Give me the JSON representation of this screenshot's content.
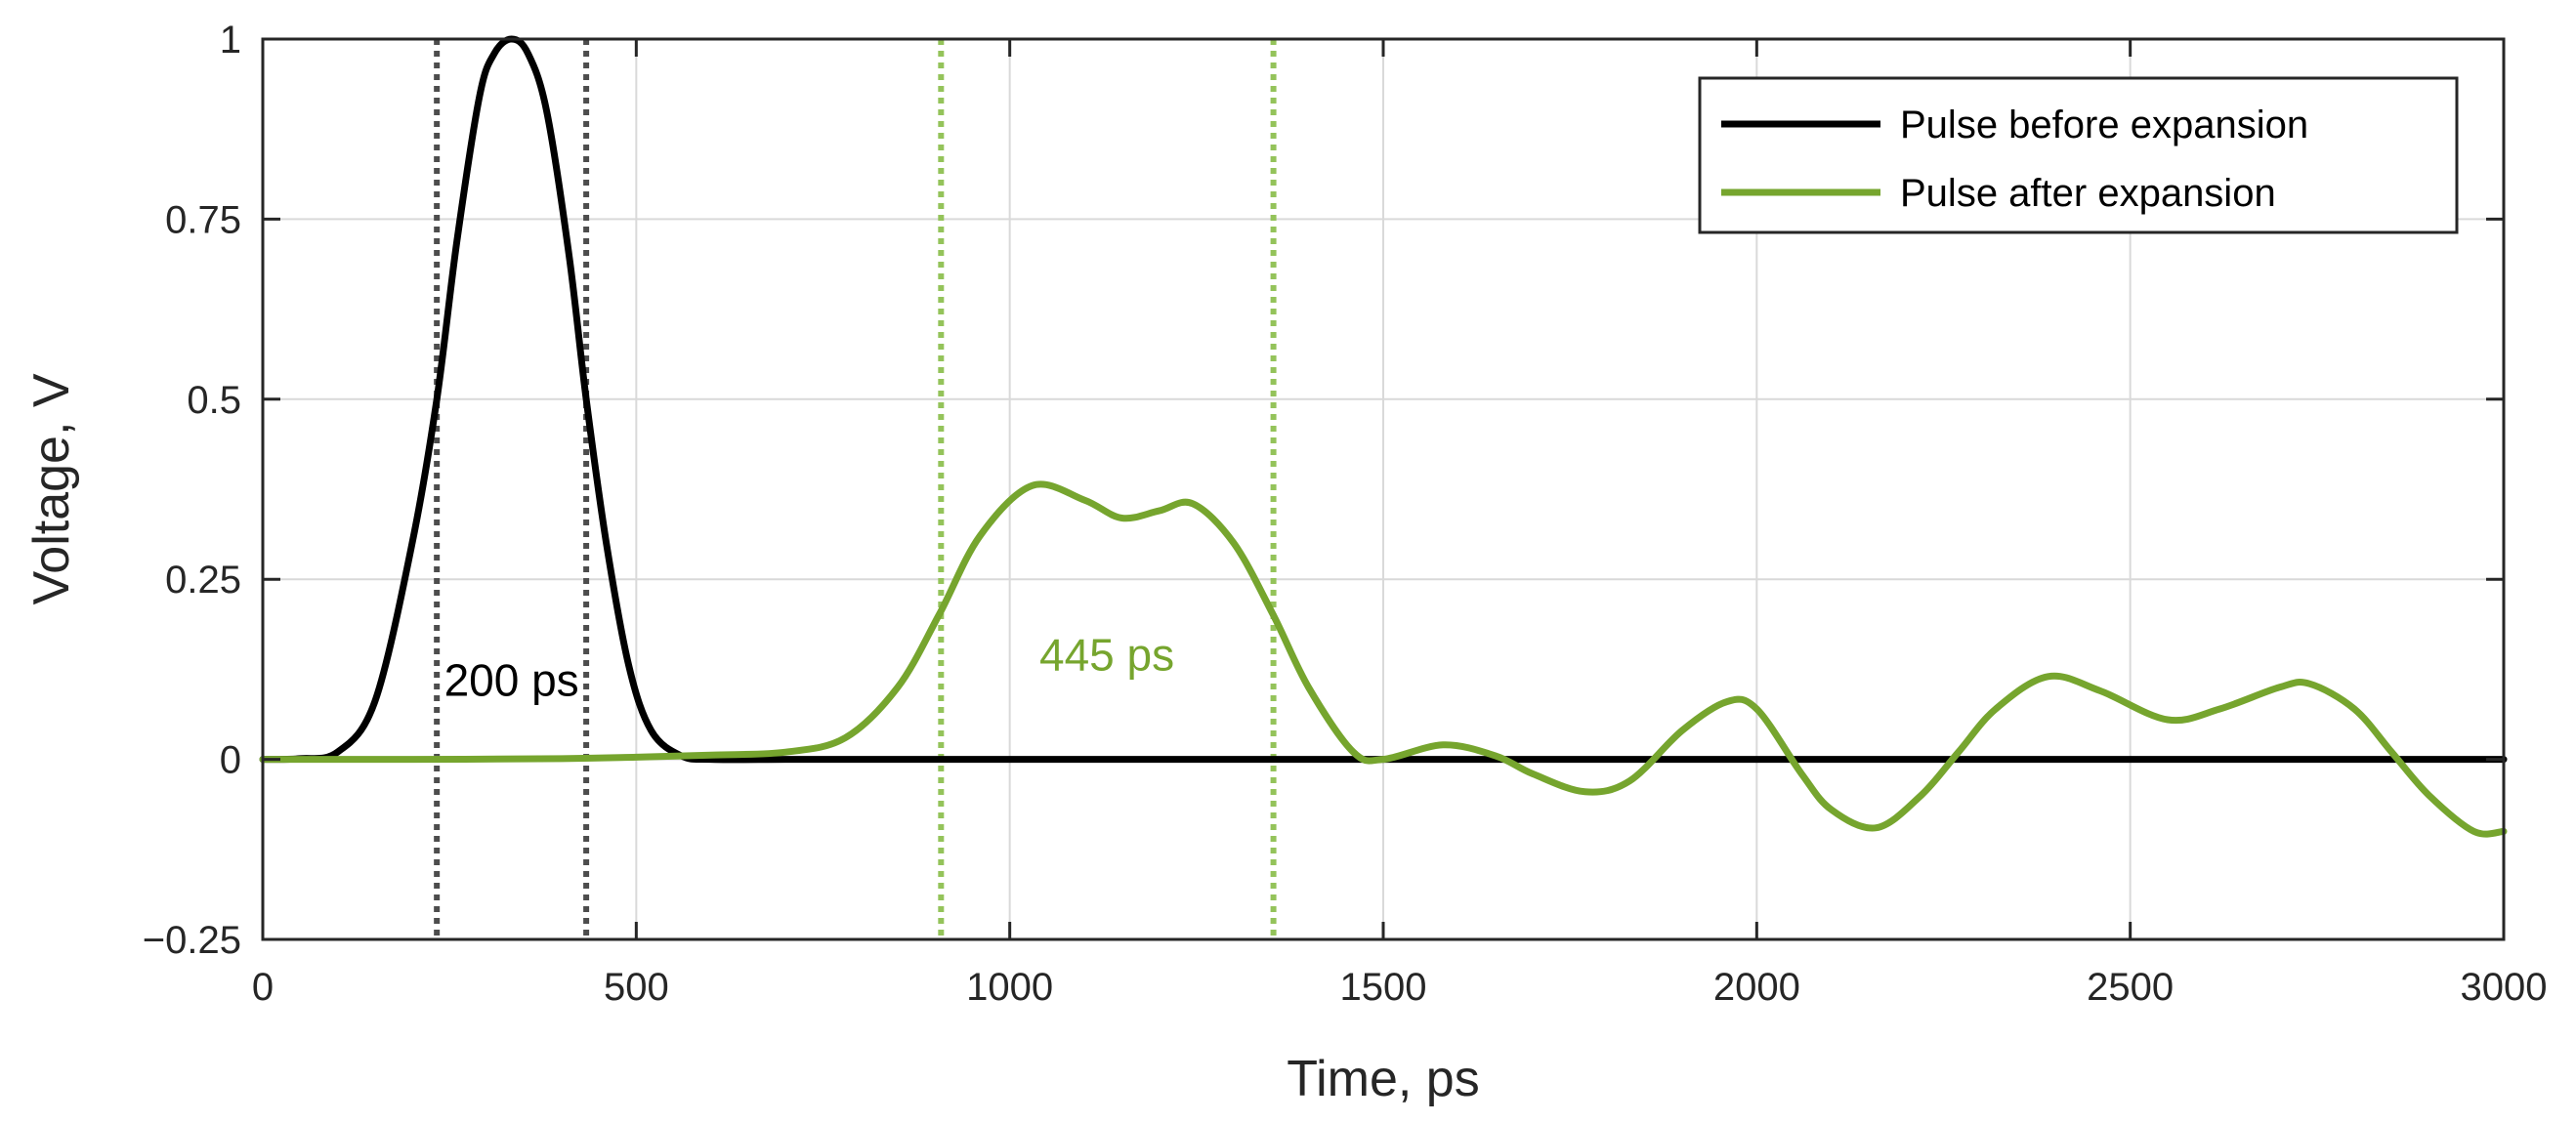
{
  "chart_data": {
    "type": "line",
    "xlabel": "Time, ps",
    "ylabel": "Voltage, V",
    "xlim": [
      0,
      3000
    ],
    "ylim": [
      -0.25,
      1
    ],
    "xticks": [
      0,
      500,
      1000,
      1500,
      2000,
      2500,
      3000
    ],
    "xtick_labels": [
      "0",
      "500",
      "1000",
      "1500",
      "2000",
      "2500",
      "3000"
    ],
    "yticks": [
      -0.25,
      0,
      0.25,
      0.5,
      0.75,
      1
    ],
    "ytick_labels": [
      "−0.25",
      "0",
      "0.25",
      "0.5",
      "0.75",
      "1"
    ],
    "grid": true,
    "legend_position": "top-right",
    "colors": {
      "before": "#000000",
      "after": "#76a52e",
      "before_marker": "#4d4d4d",
      "after_marker": "#94c35a",
      "grid": "#d9d9d9",
      "axis": "#262626"
    },
    "series": [
      {
        "name": "Pulse before expansion",
        "x": [
          0,
          50,
          100,
          150,
          200,
          233,
          260,
          290,
          310,
          333,
          355,
          380,
          410,
          433,
          460,
          490,
          520,
          560,
          600,
          700,
          800,
          1000,
          1500,
          2000,
          2500,
          3000
        ],
        "y": [
          0,
          0.001,
          0.01,
          0.08,
          0.3,
          0.5,
          0.72,
          0.92,
          0.98,
          1.0,
          0.98,
          0.9,
          0.7,
          0.5,
          0.3,
          0.13,
          0.04,
          0.005,
          0,
          0,
          0,
          0,
          0,
          0,
          0,
          0
        ]
      },
      {
        "name": "Pulse after expansion",
        "x": [
          0,
          200,
          400,
          500,
          600,
          700,
          780,
          850,
          905,
          960,
          1030,
          1100,
          1150,
          1200,
          1245,
          1300,
          1353,
          1400,
          1460,
          1500,
          1580,
          1650,
          1700,
          1770,
          1830,
          1900,
          1960,
          2000,
          2060,
          2100,
          2160,
          2220,
          2270,
          2320,
          2390,
          2460,
          2550,
          2620,
          2700,
          2740,
          2800,
          2850,
          2900,
          2960,
          3000
        ],
        "y": [
          0,
          0,
          0.001,
          0.003,
          0.006,
          0.01,
          0.03,
          0.1,
          0.2,
          0.31,
          0.38,
          0.36,
          0.335,
          0.345,
          0.355,
          0.3,
          0.2,
          0.1,
          0.01,
          0,
          0.02,
          0.005,
          -0.02,
          -0.045,
          -0.03,
          0.04,
          0.08,
          0.07,
          -0.02,
          -0.07,
          -0.095,
          -0.05,
          0.01,
          0.07,
          0.115,
          0.095,
          0.055,
          0.07,
          0.1,
          0.105,
          0.07,
          0.01,
          -0.05,
          -0.1,
          -0.1
        ]
      }
    ],
    "markers": [
      {
        "series": "before",
        "x": [
          233,
          433
        ]
      },
      {
        "series": "after",
        "x": [
          908,
          1353
        ]
      }
    ],
    "annotations": [
      {
        "text": "200 ps",
        "series": "before",
        "x": 333,
        "y": 0.11
      },
      {
        "text": "445 ps",
        "series": "after",
        "x": 1130,
        "y": 0.145
      }
    ]
  }
}
